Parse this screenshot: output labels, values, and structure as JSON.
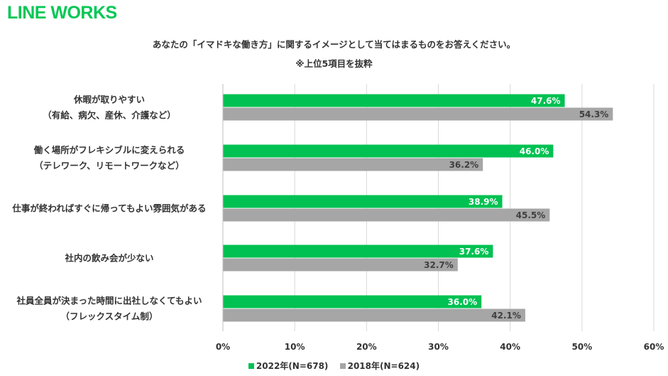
{
  "logo": {
    "text": "LINE WORKS",
    "color": "#06c755"
  },
  "chart_data": {
    "type": "bar",
    "orientation": "horizontal",
    "title": "あなたの「イマドキな働き方」に関するイメージとして当てはまるものをお答えください。",
    "subtitle": "※上位5項目を抜粋",
    "categories": [
      [
        "休暇が取りやすい",
        "（有給、病欠、産休、介護など）"
      ],
      [
        "働く場所がフレキシブルに変えられる",
        "（テレワーク、リモートワークなど）"
      ],
      [
        "仕事が終わればすぐに帰ってもよい雰囲気がある"
      ],
      [
        "社内の飲み会が少ない"
      ],
      [
        "社員全員が決まった時間に出社しなくてもよい",
        "（フレックスタイム制）"
      ]
    ],
    "series": [
      {
        "name": "2022年(N=678)",
        "color": "#00c152",
        "label_color": "#ffffff",
        "values": [
          47.6,
          46.0,
          38.9,
          37.6,
          36.0
        ]
      },
      {
        "name": "2018年(N=624)",
        "color": "#a6a6a6",
        "label_color": "#404040",
        "values": [
          54.3,
          36.2,
          45.5,
          32.7,
          42.1
        ]
      }
    ],
    "xlim": [
      0,
      60
    ],
    "xticks": [
      0,
      10,
      20,
      30,
      40,
      50,
      60
    ],
    "tick_suffix": "%",
    "value_suffix": "%",
    "grid": true,
    "legend_position": "bottom"
  }
}
